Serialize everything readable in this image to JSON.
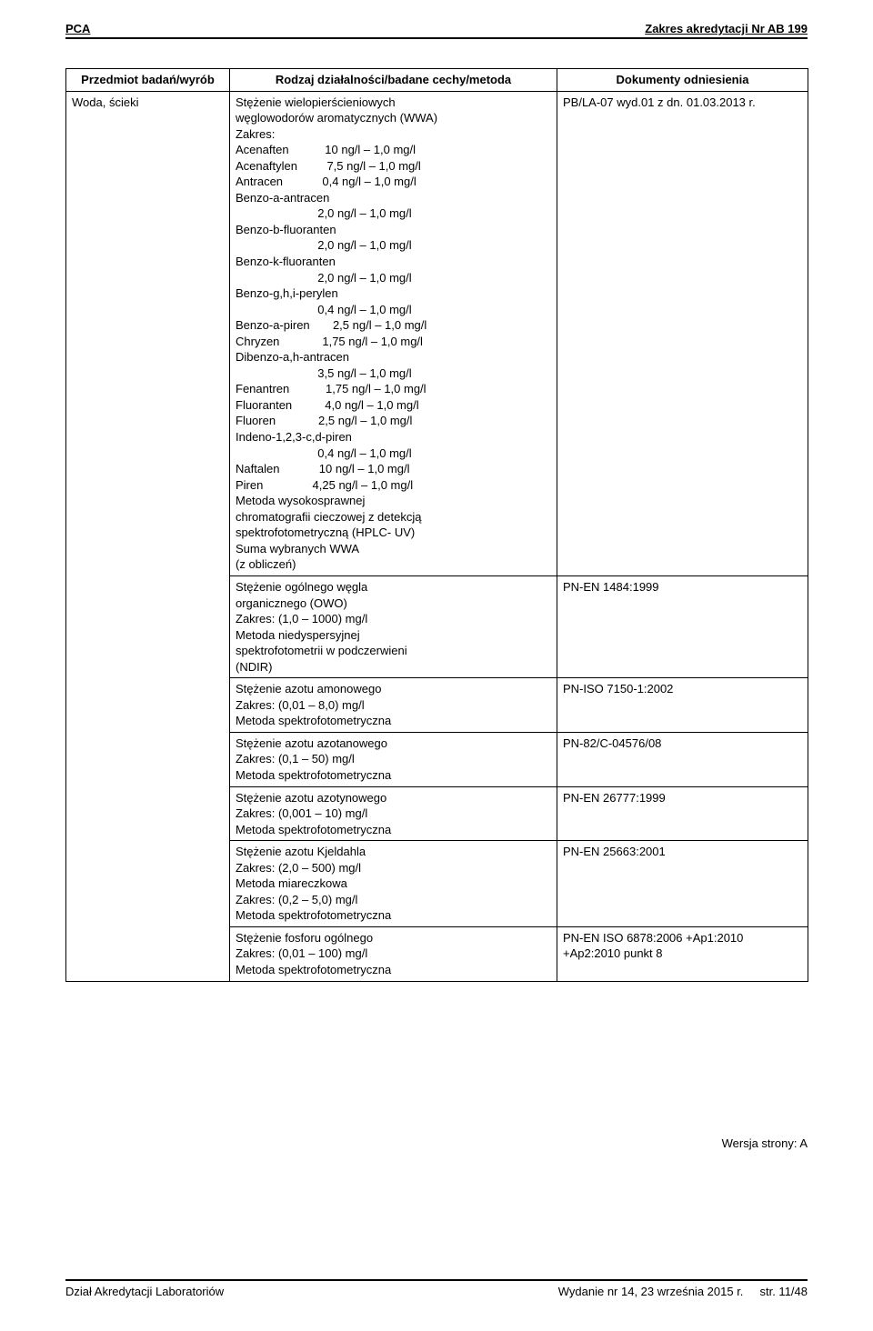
{
  "header": {
    "left": "PCA",
    "right": "Zakres akredytacji Nr AB 199"
  },
  "table": {
    "headers": [
      "Przedmiot badań/wyrób",
      "Rodzaj działalności/badane cechy/metoda",
      "Dokumenty odniesienia"
    ],
    "subject": "Woda, ścieki",
    "row1": {
      "intro1": "Stężenie wielopierścieniowych",
      "intro2": "węglowodorów aromatycznych (WWA)",
      "intro3": "Zakres:",
      "compounds": [
        {
          "name": "Acenaften",
          "range": "10 ng/l – 1,0 mg/l",
          "indent": false
        },
        {
          "name": "Acenaftylen",
          "range": "7,5 ng/l – 1,0 mg/l",
          "indent": false
        },
        {
          "name": "Antracen",
          "range": "0,4 ng/l – 1,0 mg/l",
          "indent": false
        },
        {
          "name": "Benzo-a-antracen",
          "range": "",
          "indent": false
        },
        {
          "name": "",
          "range": "2,0 ng/l – 1,0 mg/l",
          "indent": true
        },
        {
          "name": "Benzo-b-fluoranten",
          "range": "",
          "indent": false
        },
        {
          "name": "",
          "range": "2,0 ng/l – 1,0 mg/l",
          "indent": true
        },
        {
          "name": "Benzo-k-fluoranten",
          "range": "",
          "indent": false
        },
        {
          "name": "",
          "range": "2,0 ng/l – 1,0 mg/l",
          "indent": true
        },
        {
          "name": "Benzo-g,h,i-perylen",
          "range": "",
          "indent": false
        },
        {
          "name": "",
          "range": "0,4 ng/l – 1,0 mg/l",
          "indent": true
        },
        {
          "name": "Benzo-a-piren",
          "range": "2,5 ng/l – 1,0 mg/l",
          "indent": false
        },
        {
          "name": "Chryzen",
          "range": "1,75 ng/l – 1,0 mg/l",
          "indent": false
        },
        {
          "name": "Dibenzo-a,h-antracen",
          "range": "",
          "indent": false
        },
        {
          "name": "",
          "range": "3,5 ng/l – 1,0 mg/l",
          "indent": true
        },
        {
          "name": "Fenantren",
          "range": "1,75 ng/l – 1,0 mg/l",
          "indent": false
        },
        {
          "name": "Fluoranten",
          "range": "4,0 ng/l – 1,0 mg/l",
          "indent": false
        },
        {
          "name": "Fluoren",
          "range": "2,5 ng/l – 1,0 mg/l",
          "indent": false
        },
        {
          "name": "Indeno-1,2,3-c,d-piren",
          "range": "",
          "indent": false
        },
        {
          "name": "",
          "range": "0,4 ng/l – 1,0 mg/l",
          "indent": true
        },
        {
          "name": "Naftalen",
          "range": "10 ng/l – 1,0 mg/l",
          "indent": false
        },
        {
          "name": "Piren",
          "range": "4,25 ng/l – 1,0 mg/l",
          "indent": false
        }
      ],
      "outro": [
        "Metoda wysokosprawnej",
        "chromatografii cieczowej z detekcją",
        "spektrofotometryczną (HPLC- UV)",
        "Suma wybranych WWA",
        "(z obliczeń)"
      ],
      "doc": "PB/LA-07 wyd.01 z dn. 01.03.2013 r."
    },
    "rows": [
      {
        "lines": [
          "Stężenie ogólnego węgla",
          "organicznego (OWO)",
          "Zakres: (1,0 – 1000) mg/l",
          "Metoda niedyspersyjnej",
          "spektrofotometrii w podczerwieni",
          "(NDIR)"
        ],
        "doc": "PN-EN 1484:1999"
      },
      {
        "lines": [
          "Stężenie azotu amonowego",
          "Zakres: (0,01 – 8,0) mg/l",
          "Metoda spektrofotometryczna"
        ],
        "doc": "PN-ISO 7150-1:2002"
      },
      {
        "lines": [
          "Stężenie azotu azotanowego",
          "Zakres: (0,1 – 50) mg/l",
          "Metoda spektrofotometryczna"
        ],
        "doc": "PN-82/C-04576/08"
      },
      {
        "lines": [
          "Stężenie azotu azotynowego",
          "Zakres: (0,001 – 10) mg/l",
          "Metoda spektrofotometryczna"
        ],
        "doc": "PN-EN 26777:1999"
      },
      {
        "lines": [
          "Stężenie azotu Kjeldahla",
          "Zakres: (2,0 – 500) mg/l",
          "Metoda miareczkowa",
          "Zakres: (0,2 – 5,0) mg/l",
          "Metoda spektrofotometryczna"
        ],
        "doc": "PN-EN 25663:2001"
      },
      {
        "lines": [
          "Stężenie fosforu ogólnego",
          "Zakres: (0,01 – 100) mg/l",
          "Metoda spektrofotometryczna"
        ],
        "doc": "PN-EN ISO 6878:2006 +Ap1:2010 +Ap2:2010 punkt 8"
      }
    ]
  },
  "version": "Wersja strony: A",
  "footer": {
    "left": "Dział Akredytacji Laboratoriów",
    "center": "Wydanie nr 14, 23 września 2015 r.",
    "right": "str. 11/48"
  }
}
